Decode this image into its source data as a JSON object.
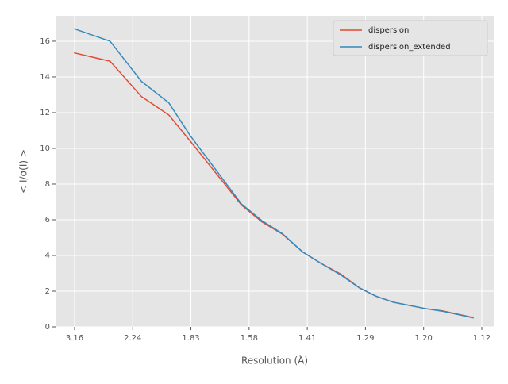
{
  "chart_data": {
    "type": "line",
    "xlabel": "Resolution (Å)",
    "ylabel": "< I/σ(I) >",
    "x": [
      0.099,
      0.161,
      0.215,
      0.262,
      0.299,
      0.387,
      0.422,
      0.457,
      0.492,
      0.524,
      0.558,
      0.59,
      0.618,
      0.648,
      0.702,
      0.732,
      0.786
    ],
    "series": [
      {
        "name": "dispersion",
        "color": "#e24a33",
        "values": [
          15.35,
          14.88,
          12.9,
          11.87,
          10.4,
          6.82,
          5.88,
          5.2,
          4.2,
          3.55,
          2.95,
          2.18,
          1.72,
          1.38,
          1.03,
          0.9,
          0.52
        ]
      },
      {
        "name": "dispersion_extended",
        "color": "#348abd",
        "values": [
          16.7,
          16.0,
          13.75,
          12.55,
          10.7,
          6.88,
          5.95,
          5.23,
          4.2,
          3.55,
          2.9,
          2.18,
          1.72,
          1.38,
          1.03,
          0.88,
          0.5
        ]
      }
    ],
    "xlim": [
      0.0673,
      0.8205
    ],
    "xticks": [
      {
        "value": 0.1,
        "label": "3.16"
      },
      {
        "value": 0.2,
        "label": "2.24"
      },
      {
        "value": 0.3,
        "label": "1.83"
      },
      {
        "value": 0.4,
        "label": "1.58"
      },
      {
        "value": 0.5,
        "label": "1.41"
      },
      {
        "value": 0.6,
        "label": "1.29"
      },
      {
        "value": 0.7,
        "label": "1.20"
      },
      {
        "value": 0.8,
        "label": "1.12"
      }
    ],
    "ylim": [
      0,
      17.42
    ],
    "yticks": [
      0,
      2,
      4,
      6,
      8,
      10,
      12,
      14,
      16
    ],
    "grid": true,
    "legend": "upper right"
  }
}
